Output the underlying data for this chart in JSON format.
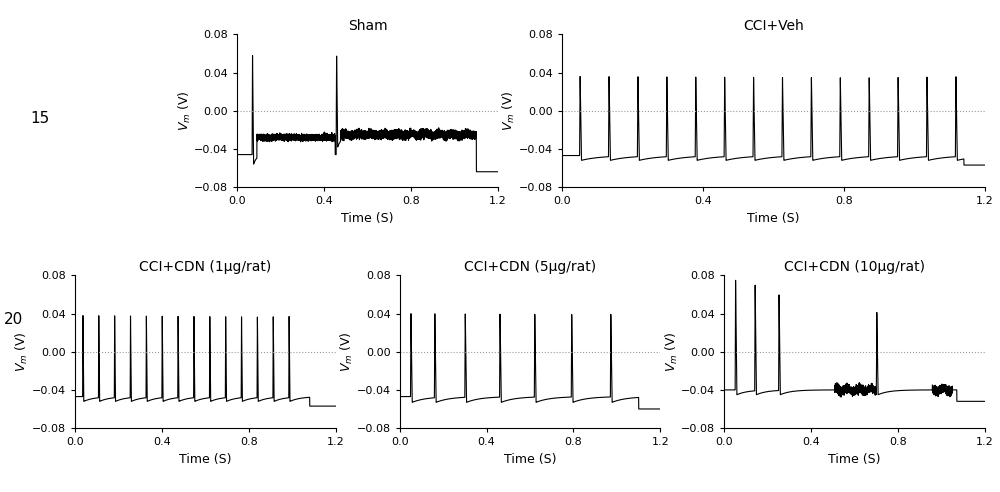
{
  "titles": [
    "Sham",
    "CCI+Veh",
    "CCI+CDN (1μg/rat)",
    "CCI+CDN (5μg/rat)",
    "CCI+CDN (10μg/rat)"
  ],
  "ylabel": "V_m (V)",
  "xlabel": "Time (S)",
  "ylim": [
    -0.08,
    0.08
  ],
  "xlim": [
    0.0,
    1.2
  ],
  "yticks": [
    -0.08,
    -0.04,
    0.0,
    0.04,
    0.08
  ],
  "xtick_vals": [
    0.0,
    0.4,
    0.8,
    1.2
  ],
  "xtick_labels": [
    "0.0",
    "0.4",
    "0.8",
    "1.2"
  ],
  "label_15": "15",
  "label_20": "20",
  "bg_color": "#ffffff",
  "line_color": "#000000",
  "dotted_color": "#999999",
  "title_fontsize": 10,
  "label_fontsize": 9,
  "tick_fontsize": 8,
  "figsize": [
    10.0,
    4.92
  ],
  "dpi": 100
}
